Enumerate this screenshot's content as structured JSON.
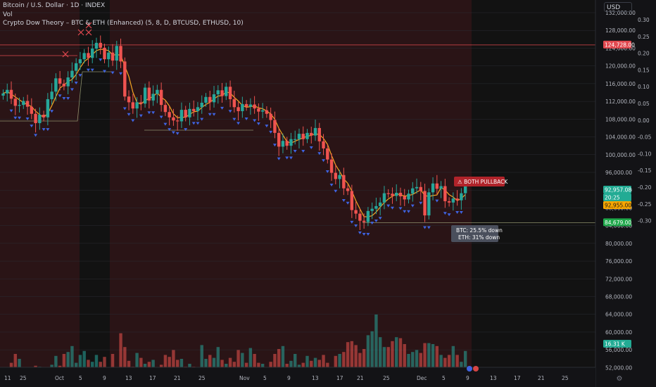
{
  "header": {
    "title": "Bitcoin / U.S. Dollar · 1D · INDEX",
    "vol_label": "Vol",
    "indicator": "Crypto Dow Theory – BTC & ETH (Enhanced) (5, 8, D, BTCUSD, ETHUSD, 10)"
  },
  "currency_button": "USD",
  "settings_icon": "gear-icon",
  "colors": {
    "background": "#131316",
    "bear_zone": "#2a1416",
    "neutral_zone": "#121212",
    "up_candle": "#26a69a",
    "down_candle": "#ef5350",
    "ma_line": "#f5a623",
    "triangle": "#3f63e0",
    "resistance_line": "#e0484f",
    "support_line": "#8d8f6b"
  },
  "badges": {
    "resistance": "124,728.00",
    "last_price": "92,957.08",
    "countdown": "20:25",
    "prev_price": "92,955.00",
    "support": "84,679.00",
    "volume": "16.31 K"
  },
  "annotations": {
    "alert": "⚠ BOTH PULLBACK",
    "btc_line": "BTC: 25.5% down",
    "eth_line": "ETH: 31% down"
  },
  "chart_data": {
    "type": "candlestick",
    "x_tick_labels": [
      "11",
      "25",
      "Oct",
      "5",
      "9",
      "13",
      "17",
      "21",
      "25",
      "Nov",
      "5",
      "9",
      "13",
      "17",
      "21",
      "25",
      "Dec",
      "5",
      "9",
      "13",
      "17",
      "21",
      "25"
    ],
    "y_price_ticks": [
      "132,000.00",
      "128,000.00",
      "124,000.00",
      "120,000.00",
      "116,000.00",
      "112,000.00",
      "108,000.00",
      "104,000.00",
      "100,000.00",
      "96,000.00",
      "92,000.00",
      "88,000.00",
      "84,000.00",
      "80,000.00",
      "76,000.00",
      "72,000.00",
      "68,000.00",
      "64,000.00",
      "60,000.00",
      "56,000.00",
      "52,000.00"
    ],
    "y_indicator_ticks": [
      "0.30",
      "0.25",
      "0.20",
      "0.15",
      "0.10",
      "0.05",
      "0.00",
      "-0.05",
      "-0.10",
      "-0.15",
      "-0.20",
      "-0.25",
      "-0.30"
    ],
    "resistance_level": 124728,
    "support_level": 84679,
    "last_price": 92957.08,
    "closes": [
      113800,
      114600,
      112600,
      111000,
      111200,
      112100,
      110800,
      109200,
      107100,
      109000,
      108400,
      112500,
      114200,
      117200,
      116000,
      115400,
      117400,
      118900,
      120600,
      121500,
      122900,
      121800,
      123900,
      125200,
      124100,
      121500,
      123000,
      121200,
      124500,
      121000,
      113100,
      111800,
      110400,
      111800,
      111500,
      115100,
      112200,
      113700,
      114600,
      111200,
      109600,
      108400,
      107700,
      107500,
      110100,
      108400,
      110300,
      109800,
      110700,
      111700,
      113000,
      111800,
      113600,
      114500,
      113200,
      115300,
      112500,
      110700,
      109800,
      111400,
      110800,
      111300,
      110400,
      109700,
      110000,
      109200,
      107800,
      104900,
      101800,
      103100,
      102000,
      103500,
      103500,
      104700,
      103500,
      104900,
      104300,
      106000,
      103000,
      101400,
      98900,
      95900,
      94500,
      95400,
      92400,
      91800,
      87500,
      86700,
      85100,
      84800,
      87300,
      87800,
      88400,
      89200,
      91300,
      91200,
      90700,
      91400,
      90600,
      89900,
      91200,
      92400,
      92700,
      91800,
      86300,
      91500,
      93500,
      92300,
      92900,
      89500,
      89200,
      90100,
      89700,
      91300,
      92957.08
    ],
    "volume_scaled": [
      0.09,
      0.1,
      0.16,
      0.25,
      0.2,
      0.06,
      0.05,
      0.06,
      0.13,
      0.12,
      0.05,
      0.08,
      0.14,
      0.23,
      0.13,
      0.25,
      0.27,
      0.33,
      0.16,
      0.24,
      0.28,
      0.19,
      0.17,
      0.24,
      0.17,
      0.22,
      0.07,
      0.25,
      0.11,
      0.46,
      0.32,
      0.18,
      0.12,
      0.26,
      0.21,
      0.15,
      0.17,
      0.19,
      0.08,
      0.14,
      0.24,
      0.22,
      0.29,
      0.19,
      0.2,
      0.12,
      0.15,
      0.12,
      0.11,
      0.34,
      0.2,
      0.24,
      0.21,
      0.32,
      0.19,
      0.15,
      0.21,
      0.17,
      0.29,
      0.26,
      0.16,
      0.31,
      0.25,
      0.16,
      0.15,
      0.11,
      0.17,
      0.25,
      0.3,
      0.33,
      0.15,
      0.18,
      0.25,
      0.14,
      0.16,
      0.23,
      0.18,
      0.21,
      0.19,
      0.24,
      0.16,
      0.11,
      0.23,
      0.25,
      0.27,
      0.37,
      0.38,
      0.34,
      0.26,
      0.3,
      0.44,
      0.48,
      0.65,
      0.42,
      0.32,
      0.32,
      0.38,
      0.42,
      0.41,
      0.35,
      0.25,
      0.27,
      0.29,
      0.26,
      0.36,
      0.36,
      0.35,
      0.33,
      0.24,
      0.21,
      0.24,
      0.33,
      0.24,
      0.17,
      0.28
    ]
  }
}
